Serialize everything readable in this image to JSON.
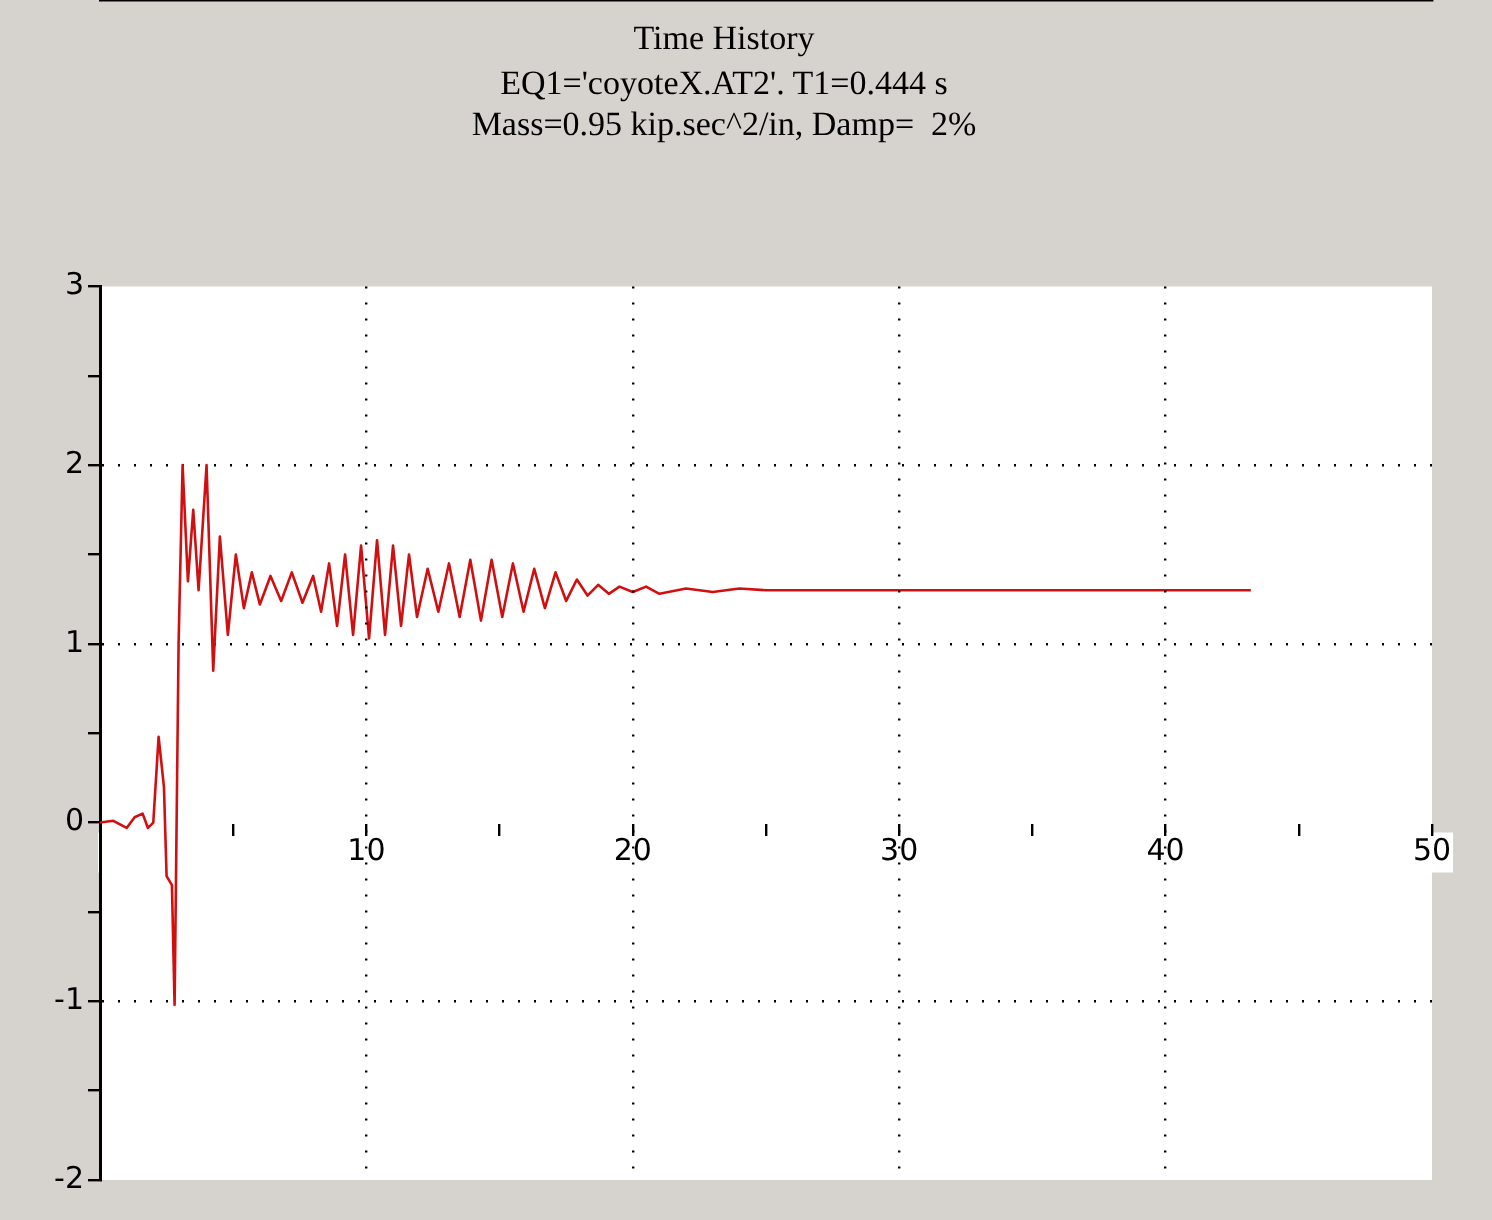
{
  "chart_data": {
    "type": "line",
    "title": "Time History",
    "subtitle": "EQ1='coyoteX.AT2'. T1=0.444 s\nMass=0.95 kip.sec^2/in, Damp=  2%",
    "xlim": [
      0,
      50
    ],
    "ylim": [
      -2,
      3
    ],
    "xticks": [
      {
        "value": 0,
        "label": null
      },
      {
        "value": 5,
        "label": null
      },
      10,
      {
        "value": 15,
        "label": null
      },
      20,
      {
        "value": 25,
        "label": null
      },
      30,
      {
        "value": 35,
        "label": null
      },
      40,
      {
        "value": 45,
        "label": null
      },
      50
    ],
    "yticks": [
      -2,
      {
        "value": -1.5,
        "label": null
      },
      -1,
      {
        "value": -0.5,
        "label": null
      },
      0,
      {
        "value": 0.5,
        "label": null
      },
      1,
      {
        "value": 1.5,
        "label": null
      },
      2,
      {
        "value": 2.5,
        "label": null
      },
      3
    ],
    "grid": true,
    "legend": false,
    "marker": "none",
    "line_style": "solid",
    "series": [
      {
        "color": "#d01010",
        "x": [
          0,
          0.5,
          1,
          1.3,
          1.6,
          1.8,
          2.0,
          2.2,
          2.4,
          2.5,
          2.7,
          2.8,
          2.95,
          3.1,
          3.3,
          3.5,
          3.7,
          4.0,
          4.25,
          4.5,
          4.8,
          5.1,
          5.4,
          5.7,
          6.0,
          6.4,
          6.8,
          7.2,
          7.6,
          8.0,
          8.3,
          8.6,
          8.9,
          9.2,
          9.5,
          9.8,
          10.1,
          10.4,
          10.7,
          11.0,
          11.3,
          11.6,
          11.9,
          12.3,
          12.7,
          13.1,
          13.5,
          13.9,
          14.3,
          14.7,
          15.1,
          15.5,
          15.9,
          16.3,
          16.7,
          17.1,
          17.5,
          17.9,
          18.3,
          18.7,
          19.1,
          19.5,
          20.0,
          20.5,
          21,
          22,
          23,
          24,
          25,
          43.2
        ],
        "values": [
          0,
          0.01,
          -0.03,
          0.03,
          0.05,
          -0.03,
          0,
          0.48,
          0.2,
          -0.3,
          -0.35,
          -1.02,
          1.0,
          2.0,
          1.35,
          1.75,
          1.3,
          2.0,
          0.85,
          1.6,
          1.05,
          1.5,
          1.2,
          1.4,
          1.22,
          1.38,
          1.24,
          1.4,
          1.23,
          1.38,
          1.18,
          1.45,
          1.1,
          1.5,
          1.05,
          1.55,
          1.03,
          1.58,
          1.05,
          1.55,
          1.1,
          1.5,
          1.15,
          1.42,
          1.18,
          1.45,
          1.15,
          1.47,
          1.13,
          1.47,
          1.15,
          1.45,
          1.18,
          1.42,
          1.2,
          1.4,
          1.24,
          1.36,
          1.27,
          1.33,
          1.28,
          1.32,
          1.29,
          1.32,
          1.28,
          1.31,
          1.29,
          1.31,
          1.3,
          1.3
        ]
      }
    ]
  }
}
